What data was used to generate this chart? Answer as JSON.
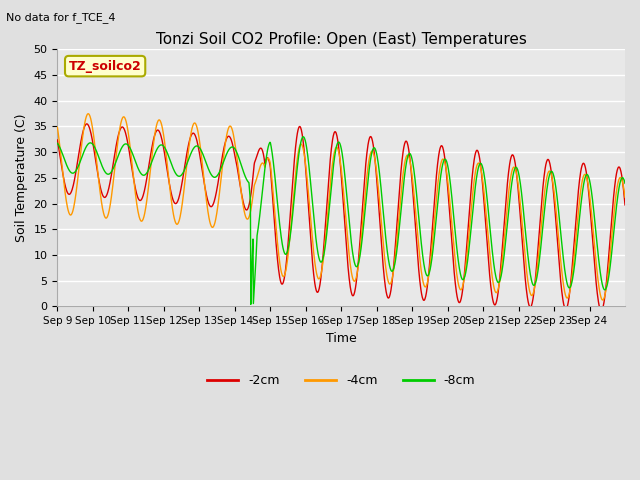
{
  "title": "Tonzi Soil CO2 Profile: Open (East) Temperatures",
  "subtitle": "No data for f_TCE_4",
  "xlabel": "Time",
  "ylabel": "Soil Temperature (C)",
  "ylim": [
    0,
    50
  ],
  "yticks": [
    0,
    5,
    10,
    15,
    20,
    25,
    30,
    35,
    40,
    45,
    50
  ],
  "xtick_labels": [
    "Sep 9",
    "Sep 10",
    "Sep 11",
    "Sep 12",
    "Sep 13",
    "Sep 14",
    "Sep 15",
    "Sep 16",
    "Sep 17",
    "Sep 18",
    "Sep 19",
    "Sep 20",
    "Sep 21",
    "Sep 22",
    "Sep 23",
    "Sep 24"
  ],
  "legend_labels": [
    "-2cm",
    "-4cm",
    "-8cm"
  ],
  "line_colors": [
    "#dd0000",
    "#ff9900",
    "#00cc00"
  ],
  "bg_color": "#e0e0e0",
  "plot_bg_color": "#e8e8e8",
  "box_label": "TZ_soilco2",
  "box_label_color": "#cc0000",
  "box_bg_color": "#ffffcc",
  "box_border_color": "#aaaa00"
}
